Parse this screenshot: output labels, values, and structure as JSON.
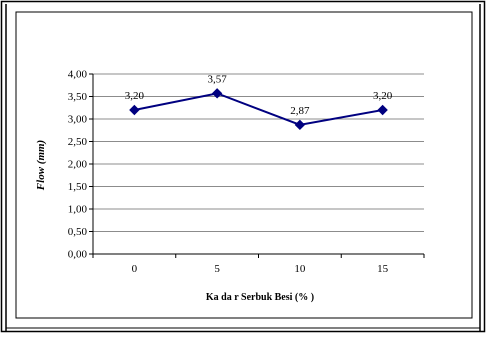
{
  "chart_data": {
    "type": "line",
    "categories": [
      "0",
      "5",
      "10",
      "15"
    ],
    "values": [
      3.2,
      3.57,
      2.87,
      3.2
    ],
    "data_labels": [
      "3,20",
      "3,57",
      "2,87",
      "3,20"
    ],
    "y_ticks": [
      "0,00",
      "0,50",
      "1,00",
      "1,50",
      "2,00",
      "2,50",
      "3,00",
      "3,50",
      "4,00"
    ],
    "ylim": [
      0,
      4
    ],
    "xlabel": "Ka da r Serbuk Besi (% )",
    "ylabel": "Flow (mm)",
    "grid": true,
    "legend": "none",
    "series_color": "#000080"
  }
}
